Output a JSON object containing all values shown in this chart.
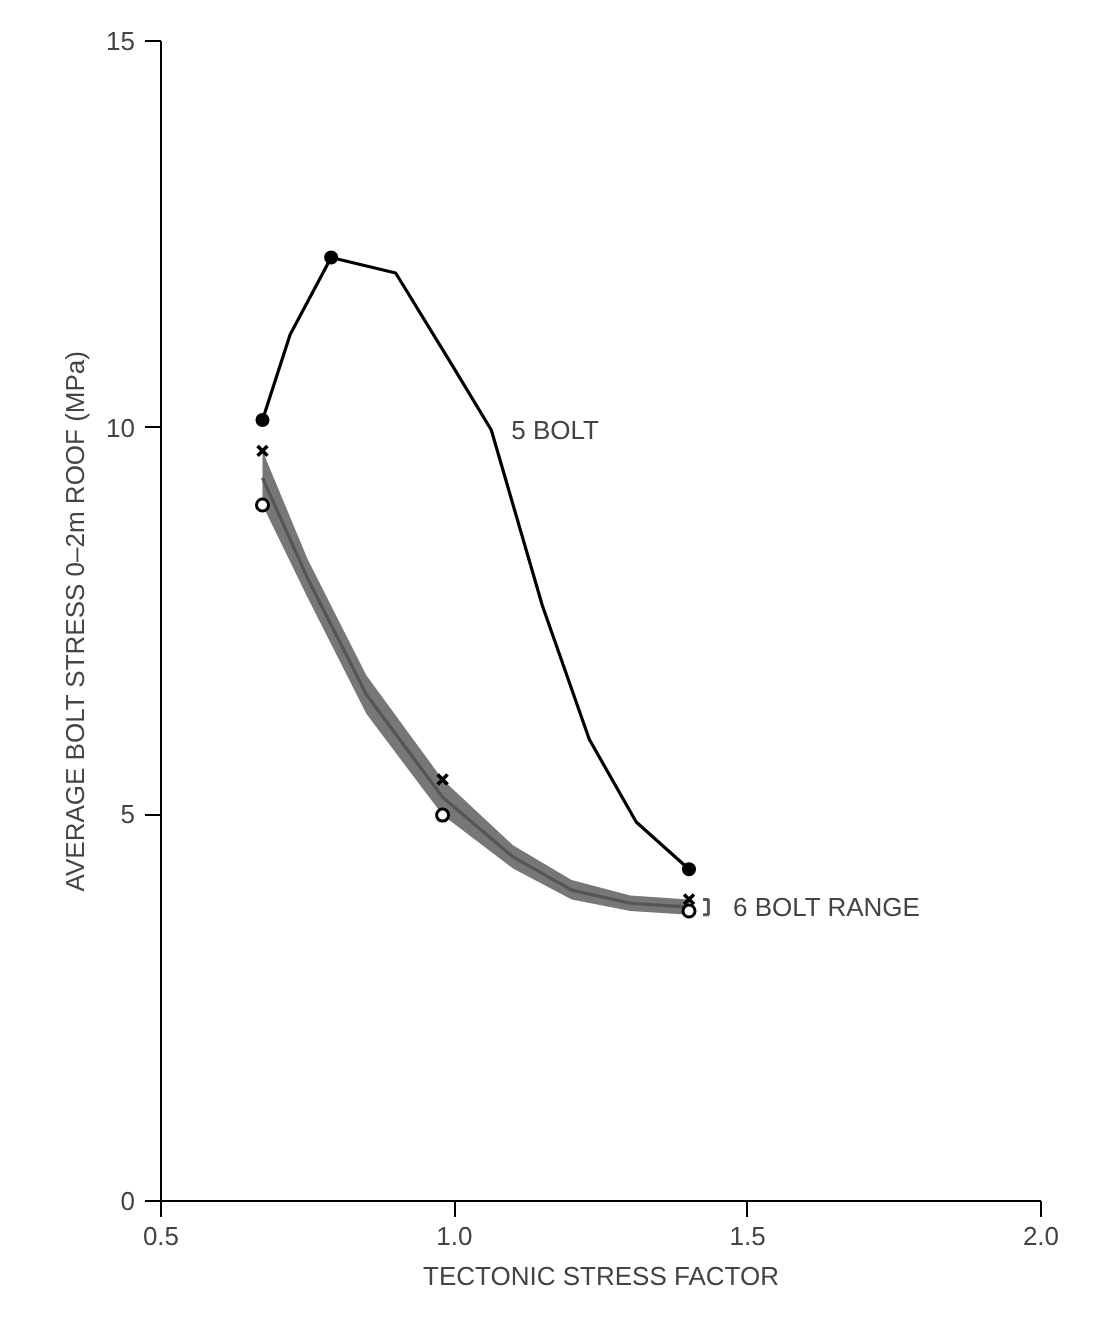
{
  "chart_data": {
    "type": "line",
    "xlabel": "TECTONIC STRESS FACTOR",
    "ylabel": "AVERAGE BOLT STRESS 0–2m ROOF (MPa)",
    "xlim": [
      0.5,
      2.0
    ],
    "ylim": [
      0,
      15
    ],
    "xticks": [
      0.5,
      {
        "value": 1.0,
        "label": "1.0"
      },
      1.5,
      {
        "value": 2.0,
        "label": "2.0"
      }
    ],
    "yticks": [
      0,
      5,
      10,
      15
    ],
    "grid": false,
    "series": [
      {
        "name": "5 BOLT",
        "color": "#000000",
        "marker": "none",
        "x": [
          0.673,
          0.72,
          0.79,
          0.9,
          0.997,
          1.063,
          1.15,
          1.23,
          1.31,
          1.4
        ],
        "values": [
          10.1,
          11.2,
          12.2,
          12.0,
          10.8,
          9.97,
          7.7,
          5.97,
          4.9,
          4.29
        ]
      },
      {
        "type": "scatter",
        "color": "#000000",
        "marker": "circle",
        "x": [
          0.673,
          0.79,
          1.4
        ],
        "values": [
          10.1,
          12.2,
          4.29
        ]
      },
      {
        "name": "6 BOLT RANGE",
        "color": "#555555",
        "marker": "none",
        "x": [
          0.673,
          0.75,
          0.85,
          0.98,
          1.1,
          1.2,
          1.3,
          1.4
        ],
        "values": [
          9.35,
          8.05,
          6.55,
          5.22,
          4.45,
          4.02,
          3.85,
          3.8
        ],
        "lower": [
          9.0,
          7.8,
          6.3,
          4.99,
          4.3,
          3.9,
          3.75,
          3.7
        ],
        "upper": [
          9.7,
          8.3,
          6.8,
          5.45,
          4.6,
          4.15,
          3.95,
          3.9
        ]
      },
      {
        "type": "scatter",
        "color": "#000000",
        "marker": "cross",
        "x": [
          0.673,
          0.98,
          1.4
        ],
        "values": [
          9.7,
          5.45,
          3.9
        ]
      },
      {
        "type": "scatter",
        "color": "#000000",
        "marker": "circle_open",
        "x": [
          0.673,
          0.98,
          1.4
        ],
        "values": [
          9.0,
          4.99,
          3.75
        ]
      }
    ]
  }
}
